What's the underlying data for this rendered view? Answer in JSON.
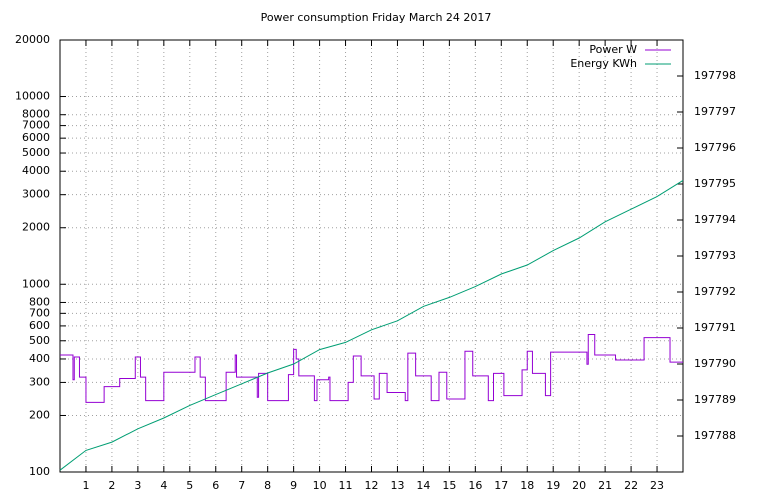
{
  "chart_data": {
    "type": "line",
    "title": "Power consumption Friday March 24 2017",
    "xlim": [
      0,
      24
    ],
    "xticks": [
      1,
      2,
      3,
      4,
      5,
      6,
      7,
      8,
      9,
      10,
      11,
      12,
      13,
      14,
      15,
      16,
      17,
      18,
      19,
      20,
      21,
      22,
      23
    ],
    "ylim": [
      100,
      20000
    ],
    "ylog": true,
    "yticks": [
      100,
      200,
      300,
      400,
      500,
      600,
      700,
      800,
      1000,
      2000,
      3000,
      4000,
      5000,
      6000,
      7000,
      8000,
      10000,
      20000
    ],
    "y2lim": [
      197787,
      197799
    ],
    "y2ticks": [
      197788,
      197789,
      197790,
      197791,
      197792,
      197793,
      197794,
      197795,
      197796,
      197797,
      197798
    ],
    "grid": true,
    "legend": "top right",
    "series": [
      {
        "name": "Power W",
        "color": "#9400d3",
        "axis": "y",
        "x": [
          0,
          0.5,
          0.5,
          0.55,
          0.55,
          0.6,
          0.6,
          0.75,
          0.75,
          1,
          1,
          1.7,
          1.7,
          2.3,
          2.3,
          2.9,
          2.9,
          3.1,
          3.1,
          3.3,
          3.3,
          4,
          4,
          5.2,
          5.2,
          5.4,
          5.4,
          5.6,
          5.6,
          6.4,
          6.4,
          6.75,
          6.75,
          6.8,
          6.8,
          7.6,
          7.6,
          7.65,
          7.65,
          8,
          8,
          8.8,
          8.8,
          9,
          9,
          9.1,
          9.1,
          9.2,
          9.2,
          9.8,
          9.8,
          9.9,
          9.9,
          10.35,
          10.35,
          10.4,
          10.4,
          11.1,
          11.1,
          11.3,
          11.3,
          11.6,
          11.6,
          12.1,
          12.1,
          12.3,
          12.3,
          12.6,
          12.6,
          13.3,
          13.3,
          13.4,
          13.4,
          13.7,
          13.7,
          14.3,
          14.3,
          14.6,
          14.6,
          14.9,
          14.9,
          15.6,
          15.6,
          15.9,
          15.9,
          16.5,
          16.5,
          16.7,
          16.7,
          17.1,
          17.1,
          17.8,
          17.8,
          18,
          18,
          18.2,
          18.2,
          18.7,
          18.7,
          18.9,
          18.9,
          20.3,
          20.3,
          20.35,
          20.35,
          20.6,
          20.6,
          21.4,
          21.4,
          22.5,
          22.5,
          23.5,
          23.5,
          24
        ],
        "values": [
          420,
          420,
          310,
          310,
          410,
          410,
          410,
          410,
          320,
          320,
          235,
          235,
          285,
          285,
          315,
          315,
          410,
          410,
          320,
          320,
          240,
          240,
          340,
          340,
          410,
          410,
          320,
          320,
          240,
          240,
          340,
          340,
          420,
          420,
          320,
          320,
          250,
          250,
          335,
          335,
          240,
          240,
          330,
          330,
          450,
          450,
          400,
          400,
          325,
          325,
          240,
          240,
          310,
          310,
          320,
          320,
          240,
          240,
          300,
          300,
          415,
          415,
          325,
          325,
          245,
          245,
          335,
          335,
          265,
          265,
          240,
          240,
          430,
          430,
          325,
          325,
          240,
          240,
          340,
          340,
          245,
          245,
          440,
          440,
          325,
          325,
          240,
          240,
          335,
          335,
          255,
          255,
          350,
          350,
          440,
          440,
          335,
          335,
          255,
          255,
          435,
          435,
          375,
          375,
          540,
          540,
          420,
          420,
          395,
          395,
          520,
          520,
          385,
          385
        ]
      },
      {
        "name": "Energy KWh",
        "color": "#009e73",
        "axis": "y2",
        "x": [
          0,
          1,
          2,
          3,
          4,
          5,
          6,
          7,
          8,
          9,
          10,
          11,
          12,
          13,
          14,
          15,
          16,
          17,
          18,
          19,
          20,
          21,
          22,
          23,
          24
        ],
        "values": [
          197787.05,
          197787.6,
          197787.83,
          197788.2,
          197788.5,
          197788.85,
          197789.15,
          197789.45,
          197789.75,
          197790.0,
          197790.4,
          197790.6,
          197790.95,
          197791.2,
          197791.6,
          197791.85,
          197792.15,
          197792.5,
          197792.75,
          197793.15,
          197793.5,
          197793.95,
          197794.3,
          197794.65,
          197795.1
        ]
      }
    ]
  }
}
